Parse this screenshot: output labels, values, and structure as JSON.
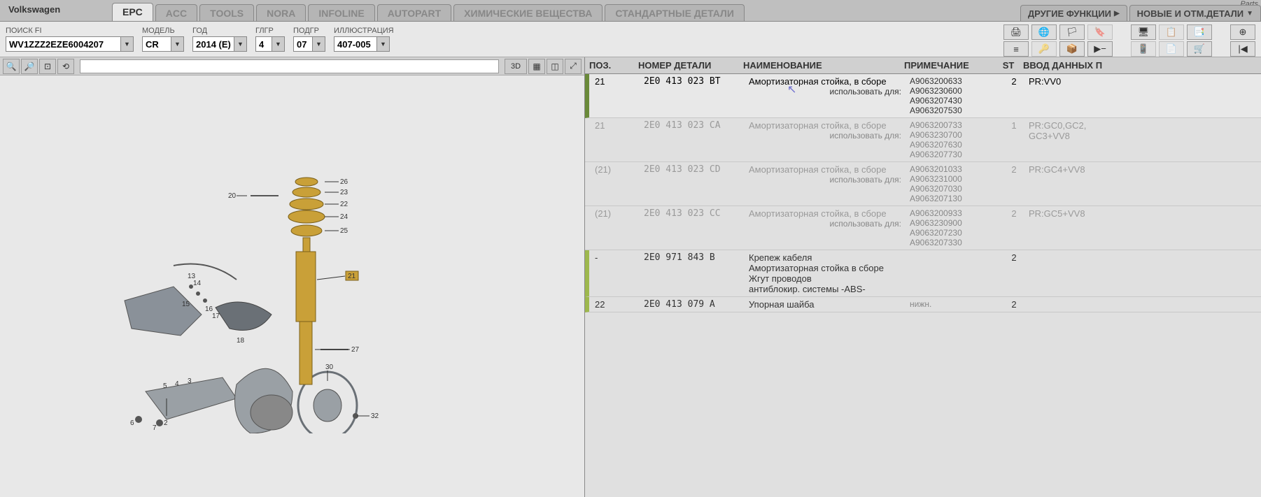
{
  "brand": "Volkswagen",
  "parts_label": "Parts",
  "tabs": {
    "items": [
      {
        "label": "EPC",
        "active": true
      },
      {
        "label": "ACC",
        "active": false
      },
      {
        "label": "TOOLS",
        "active": false
      },
      {
        "label": "NORA",
        "active": false
      },
      {
        "label": "INFOLINE",
        "active": false
      },
      {
        "label": "AUTOPART",
        "active": false
      },
      {
        "label": "ХИМИЧЕСКИЕ ВЕЩЕСТВА",
        "active": false
      },
      {
        "label": "СТАНДАРТНЫЕ ДЕТАЛИ",
        "active": false
      }
    ]
  },
  "right_tabs": {
    "functions": "ДРУГИЕ ФУНКЦИИ",
    "new_parts": "НОВЫЕ И ОТМ.ДЕТАЛИ"
  },
  "params": {
    "search": {
      "label": "ПОИСК FI",
      "value": "WV1ZZZ2EZE6004207"
    },
    "model": {
      "label": "МОДЕЛЬ",
      "value": "CR"
    },
    "year": {
      "label": "ГОД",
      "value": "2014 (E)"
    },
    "glgr": {
      "label": "ГЛГР",
      "value": "4"
    },
    "podgr": {
      "label": "ПОДГР",
      "value": "07"
    },
    "illus": {
      "label": "ИЛЛЮСТРАЦИЯ",
      "value": "407-005"
    }
  },
  "view_toolbar": {
    "three_d": "3D"
  },
  "table": {
    "headers": {
      "pos": "ПОЗ.",
      "part": "НОМЕР ДЕТАЛИ",
      "name": "НАИМЕНОВАНИЕ",
      "note": "ПРИМЕЧАНИЕ",
      "st": "ST",
      "entry": "ВВОД ДАННЫХ П"
    },
    "rows": [
      {
        "pos": "21",
        "part": "2E0 413 023 BT",
        "name": "Амортизаторная стойка, в сборе",
        "name2": "использовать для:",
        "notes": [
          "A9063200633",
          "A9063230600",
          "A9063207430",
          "A9063207530"
        ],
        "st": "2",
        "entry": "PR:VV0",
        "selected": true
      },
      {
        "pos": "21",
        "part": "2E0 413 023 CA",
        "name": "Амортизаторная стойка, в сборе",
        "name2": "использовать для:",
        "notes": [
          "A9063200733",
          "A9063230700",
          "A9063207630",
          "A9063207730"
        ],
        "st": "1",
        "entry": "PR:GC0,GC2,\nGC3+VV8",
        "dimmed": true
      },
      {
        "pos": "(21)",
        "part": "2E0 413 023 CD",
        "name": "Амортизаторная стойка, в сборе",
        "name2": "использовать для:",
        "notes": [
          "A9063201033",
          "A9063231000",
          "A9063207030",
          "A9063207130"
        ],
        "st": "2",
        "entry": "PR:GC4+VV8",
        "dimmed": true
      },
      {
        "pos": "(21)",
        "part": "2E0 413 023 CC",
        "name": "Амортизаторная стойка, в сборе",
        "name2": "использовать для:",
        "notes": [
          "A9063200933",
          "A9063230900",
          "A9063207230",
          "A9063207330"
        ],
        "st": "2",
        "entry": "PR:GC5+VV8",
        "dimmed": true
      },
      {
        "pos": "-",
        "part": "2E0 971 843 B",
        "name": "Крепеж кабеля\nАмортизаторная стойка в сборе\nЖгут проводов\nантиблокир. системы      -ABS-",
        "notes": [],
        "st": "2",
        "entry": "",
        "mark": true
      },
      {
        "pos": "22",
        "part": "2E0 413 079 A",
        "name": "Упорная шайба",
        "notes": [
          "нижн."
        ],
        "st": "2",
        "entry": "",
        "mark": true
      }
    ]
  },
  "diagram": {
    "callouts": [
      "20",
      "21",
      "22",
      "23",
      "24",
      "25",
      "26",
      "27",
      "13",
      "14",
      "15",
      "16",
      "17",
      "18",
      "3",
      "4",
      "5",
      "6",
      "7",
      "30",
      "32"
    ]
  },
  "colors": {
    "bg": "#bfbfbf",
    "pane": "#e8e8e8",
    "accent": "#6a8a3a",
    "part_gold": "#c9a038",
    "part_gray": "#8a9199"
  }
}
